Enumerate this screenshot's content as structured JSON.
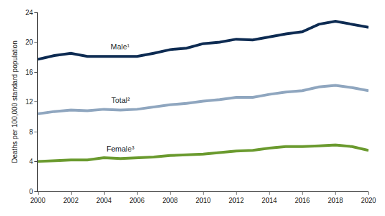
{
  "chart_data": {
    "type": "line",
    "y_label": "Deaths per 100,000 standard population",
    "x": [
      2000,
      2001,
      2002,
      2003,
      2004,
      2005,
      2006,
      2007,
      2008,
      2009,
      2010,
      2011,
      2012,
      2013,
      2014,
      2015,
      2016,
      2017,
      2018,
      2019,
      2020
    ],
    "series": [
      {
        "name": "Male¹",
        "color": "#0d2b52",
        "values": [
          17.7,
          18.2,
          18.5,
          18.1,
          18.1,
          18.1,
          18.1,
          18.5,
          19.0,
          19.2,
          19.8,
          20.0,
          20.4,
          20.3,
          20.7,
          21.1,
          21.4,
          22.4,
          22.8,
          22.4,
          22.0
        ]
      },
      {
        "name": "Total²",
        "color": "#8fa6bf",
        "values": [
          10.4,
          10.7,
          10.9,
          10.8,
          11.0,
          10.9,
          11.0,
          11.3,
          11.6,
          11.8,
          12.1,
          12.3,
          12.6,
          12.6,
          13.0,
          13.3,
          13.5,
          14.0,
          14.2,
          13.9,
          13.5
        ]
      },
      {
        "name": "Female³",
        "color": "#6a9a2e",
        "values": [
          4.0,
          4.1,
          4.2,
          4.2,
          4.5,
          4.4,
          4.5,
          4.6,
          4.8,
          4.9,
          5.0,
          5.2,
          5.4,
          5.5,
          5.8,
          6.0,
          6.0,
          6.1,
          6.2,
          6.0,
          5.5
        ]
      }
    ],
    "xlim": [
      2000,
      2020
    ],
    "xticks": [
      2000,
      2002,
      2004,
      2006,
      2008,
      2010,
      2012,
      2014,
      2016,
      2018,
      2020
    ],
    "ylim": [
      0,
      24
    ],
    "yticks": [
      0,
      4,
      8,
      12,
      16,
      20,
      24
    ],
    "grid": false
  }
}
